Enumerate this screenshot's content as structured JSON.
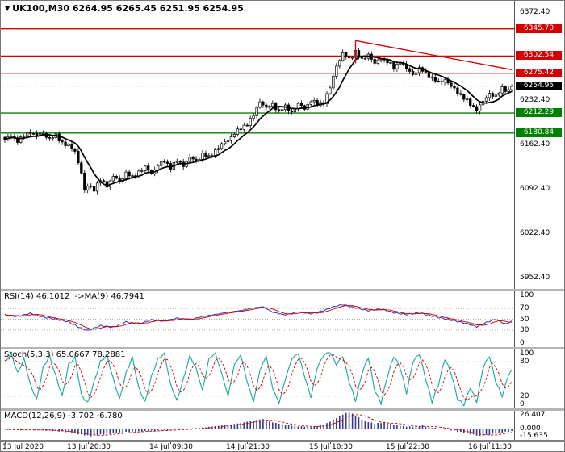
{
  "header": {
    "marker_icon": "▼",
    "symbol": "UK100,M30",
    "ohlc": "6264.95 6265.45 6251.95 6254.95"
  },
  "colors": {
    "bg": "#ffffff",
    "candle": "#000000",
    "ma": "#000000",
    "resistance": "#d40000",
    "support": "#008000",
    "badge_current": "#000000",
    "rsi_main": "#4a3ab4",
    "rsi_signal": "#c80000",
    "stoch_main": "#1aa79d",
    "stoch_signal": "#c80000",
    "macd_hist": "#38388a",
    "macd_signal": "#c80000",
    "grid": "#ababab",
    "axis_text": "#000000"
  },
  "chart_data": {
    "type": "candlestick",
    "symbol": "UK100",
    "timeframe": "M30",
    "last_ohlc": {
      "open": 6264.95,
      "high": 6265.45,
      "low": 6251.95,
      "close": 6254.95
    },
    "bars": 160,
    "price_axis": {
      "range": [
        5934,
        6390
      ],
      "ticks": [
        "6372.40",
        "6232.40",
        "6162.40",
        "6092.40",
        "6022.40",
        "5952.40"
      ]
    },
    "levels": [
      {
        "price": 6345.7,
        "label": "6345.70",
        "type": "resistance"
      },
      {
        "price": 6302.54,
        "label": "6302.54",
        "type": "resistance"
      },
      {
        "price": 6275.42,
        "label": "6275.42",
        "type": "resistance"
      },
      {
        "price": 6212.29,
        "label": "6212.29",
        "type": "support"
      },
      {
        "price": 6180.84,
        "label": "6180.84",
        "type": "support"
      }
    ],
    "current_price": 6254.95,
    "current_price_label": "6254.95",
    "trendline": {
      "from": [
        110,
        6327
      ],
      "to": [
        159,
        6281
      ],
      "edge_from": [
        110,
        6327
      ],
      "edge_to": [
        110,
        6291
      ]
    },
    "close_path": [
      [
        0,
        6170
      ],
      [
        2,
        6176
      ],
      [
        4,
        6169
      ],
      [
        6,
        6175
      ],
      [
        8,
        6183
      ],
      [
        10,
        6176
      ],
      [
        12,
        6180
      ],
      [
        14,
        6172
      ],
      [
        16,
        6176
      ],
      [
        18,
        6166
      ],
      [
        20,
        6160
      ],
      [
        22,
        6152
      ],
      [
        24,
        6118
      ],
      [
        25,
        6088
      ],
      [
        26,
        6098
      ],
      [
        28,
        6092
      ],
      [
        30,
        6106
      ],
      [
        32,
        6098
      ],
      [
        34,
        6112
      ],
      [
        36,
        6104
      ],
      [
        38,
        6118
      ],
      [
        40,
        6110
      ],
      [
        42,
        6120
      ],
      [
        44,
        6126
      ],
      [
        46,
        6117
      ],
      [
        48,
        6130
      ],
      [
        50,
        6136
      ],
      [
        52,
        6127
      ],
      [
        54,
        6136
      ],
      [
        56,
        6130
      ],
      [
        58,
        6142
      ],
      [
        60,
        6136
      ],
      [
        62,
        6148
      ],
      [
        64,
        6142
      ],
      [
        66,
        6154
      ],
      [
        68,
        6162
      ],
      [
        70,
        6170
      ],
      [
        72,
        6180
      ],
      [
        74,
        6188
      ],
      [
        76,
        6196
      ],
      [
        78,
        6208
      ],
      [
        80,
        6232
      ],
      [
        82,
        6220
      ],
      [
        84,
        6226
      ],
      [
        86,
        6216
      ],
      [
        88,
        6222
      ],
      [
        90,
        6214
      ],
      [
        92,
        6226
      ],
      [
        94,
        6220
      ],
      [
        96,
        6232
      ],
      [
        98,
        6226
      ],
      [
        100,
        6230
      ],
      [
        102,
        6252
      ],
      [
        104,
        6288
      ],
      [
        106,
        6306
      ],
      [
        108,
        6298
      ],
      [
        110,
        6310
      ],
      [
        112,
        6296
      ],
      [
        114,
        6306
      ],
      [
        116,
        6290
      ],
      [
        118,
        6300
      ],
      [
        120,
        6294
      ],
      [
        122,
        6284
      ],
      [
        124,
        6294
      ],
      [
        126,
        6282
      ],
      [
        128,
        6274
      ],
      [
        130,
        6282
      ],
      [
        132,
        6276
      ],
      [
        134,
        6268
      ],
      [
        136,
        6260
      ],
      [
        138,
        6266
      ],
      [
        140,
        6254
      ],
      [
        142,
        6246
      ],
      [
        144,
        6236
      ],
      [
        146,
        6226
      ],
      [
        148,
        6218
      ],
      [
        150,
        6230
      ],
      [
        152,
        6244
      ],
      [
        154,
        6238
      ],
      [
        156,
        6252
      ],
      [
        158,
        6248
      ],
      [
        159,
        6255
      ]
    ],
    "time_labels": [
      {
        "bar": 0,
        "text": "13 Jul 2020"
      },
      {
        "bar": 26,
        "text": "13 Jul 20:30"
      },
      {
        "bar": 52,
        "text": "14 Jul 09:30"
      },
      {
        "bar": 76,
        "text": "14 Jul 21:30"
      },
      {
        "bar": 102,
        "text": "15 Jul 10:30"
      },
      {
        "bar": 126,
        "text": "15 Jul 22:30"
      },
      {
        "bar": 152,
        "text": "16 Jul 11:30"
      }
    ],
    "rsi": {
      "label": "RSI(14) 46.1012  ->MA(9) 46.7941",
      "values": {
        "rsi": 46.1012,
        "ma": 46.7941
      },
      "range": [
        0,
        100
      ],
      "ticks": [
        "100",
        "70",
        "50",
        "30",
        "0"
      ],
      "grid": [
        70,
        50,
        30
      ],
      "path": [
        [
          0,
          58
        ],
        [
          4,
          55
        ],
        [
          8,
          61
        ],
        [
          12,
          54
        ],
        [
          16,
          50
        ],
        [
          20,
          45
        ],
        [
          24,
          33
        ],
        [
          26,
          29
        ],
        [
          30,
          38
        ],
        [
          34,
          35
        ],
        [
          38,
          45
        ],
        [
          42,
          41
        ],
        [
          46,
          49
        ],
        [
          50,
          46
        ],
        [
          54,
          52
        ],
        [
          58,
          49
        ],
        [
          62,
          55
        ],
        [
          66,
          59
        ],
        [
          70,
          63
        ],
        [
          74,
          66
        ],
        [
          78,
          71
        ],
        [
          81,
          73
        ],
        [
          84,
          63
        ],
        [
          88,
          58
        ],
        [
          92,
          64
        ],
        [
          96,
          60
        ],
        [
          100,
          66
        ],
        [
          103,
          73
        ],
        [
          106,
          77
        ],
        [
          110,
          71
        ],
        [
          114,
          66
        ],
        [
          118,
          69
        ],
        [
          122,
          62
        ],
        [
          126,
          59
        ],
        [
          130,
          62
        ],
        [
          134,
          56
        ],
        [
          138,
          51
        ],
        [
          142,
          46
        ],
        [
          146,
          40
        ],
        [
          148,
          36
        ],
        [
          151,
          44
        ],
        [
          154,
          50
        ],
        [
          157,
          41
        ],
        [
          159,
          46
        ]
      ]
    },
    "stoch": {
      "label": "Stoch(5,3,3) 65.0667 78.2881",
      "values": {
        "k": 65.0667,
        "d": 78.2881
      },
      "range": [
        0,
        100
      ],
      "ticks": [
        "100",
        "80",
        "20",
        "0"
      ],
      "grid": [
        80,
        20
      ],
      "path": [
        [
          0,
          80
        ],
        [
          2,
          94
        ],
        [
          4,
          60
        ],
        [
          6,
          85
        ],
        [
          8,
          40
        ],
        [
          10,
          14
        ],
        [
          12,
          70
        ],
        [
          14,
          90
        ],
        [
          16,
          55
        ],
        [
          18,
          20
        ],
        [
          20,
          75
        ],
        [
          22,
          88
        ],
        [
          24,
          22
        ],
        [
          26,
          8
        ],
        [
          28,
          45
        ],
        [
          30,
          80
        ],
        [
          32,
          92
        ],
        [
          34,
          50
        ],
        [
          36,
          15
        ],
        [
          38,
          60
        ],
        [
          40,
          88
        ],
        [
          42,
          34
        ],
        [
          44,
          10
        ],
        [
          46,
          55
        ],
        [
          48,
          85
        ],
        [
          50,
          94
        ],
        [
          52,
          40
        ],
        [
          54,
          12
        ],
        [
          56,
          50
        ],
        [
          58,
          90
        ],
        [
          60,
          68
        ],
        [
          62,
          30
        ],
        [
          64,
          85
        ],
        [
          66,
          95
        ],
        [
          68,
          60
        ],
        [
          70,
          20
        ],
        [
          72,
          75
        ],
        [
          74,
          92
        ],
        [
          76,
          45
        ],
        [
          78,
          10
        ],
        [
          80,
          65
        ],
        [
          82,
          90
        ],
        [
          84,
          34
        ],
        [
          86,
          8
        ],
        [
          88,
          50
        ],
        [
          90,
          85
        ],
        [
          92,
          95
        ],
        [
          94,
          55
        ],
        [
          96,
          18
        ],
        [
          98,
          70
        ],
        [
          100,
          92
        ],
        [
          102,
          97
        ],
        [
          104,
          75
        ],
        [
          106,
          90
        ],
        [
          108,
          45
        ],
        [
          110,
          12
        ],
        [
          112,
          60
        ],
        [
          114,
          88
        ],
        [
          116,
          30
        ],
        [
          118,
          8
        ],
        [
          120,
          55
        ],
        [
          122,
          90
        ],
        [
          124,
          70
        ],
        [
          126,
          25
        ],
        [
          128,
          80
        ],
        [
          130,
          94
        ],
        [
          132,
          50
        ],
        [
          134,
          10
        ],
        [
          136,
          40
        ],
        [
          138,
          85
        ],
        [
          140,
          60
        ],
        [
          142,
          15
        ],
        [
          144,
          5
        ],
        [
          146,
          35
        ],
        [
          148,
          10
        ],
        [
          150,
          70
        ],
        [
          152,
          90
        ],
        [
          154,
          45
        ],
        [
          156,
          20
        ],
        [
          158,
          58
        ],
        [
          159,
          65
        ]
      ]
    },
    "macd": {
      "label": "MACD(12,26,9) -3.702 -6.780",
      "values": {
        "macd": -3.702,
        "signal": -6.78
      },
      "range": [
        -15.635,
        26.407
      ],
      "ticks": [
        "26.407",
        "0.000",
        "-15.635"
      ],
      "grid": [
        0
      ],
      "path": [
        [
          0,
          -1
        ],
        [
          5,
          -2
        ],
        [
          10,
          -1.5
        ],
        [
          15,
          -3
        ],
        [
          20,
          -5
        ],
        [
          24,
          -9
        ],
        [
          27,
          -11
        ],
        [
          30,
          -9
        ],
        [
          34,
          -7
        ],
        [
          38,
          -5
        ],
        [
          42,
          -4
        ],
        [
          46,
          -3
        ],
        [
          50,
          -2
        ],
        [
          54,
          -1
        ],
        [
          58,
          0
        ],
        [
          62,
          2
        ],
        [
          66,
          4
        ],
        [
          70,
          6
        ],
        [
          74,
          9
        ],
        [
          78,
          13
        ],
        [
          81,
          15
        ],
        [
          84,
          10
        ],
        [
          88,
          6
        ],
        [
          92,
          4
        ],
        [
          96,
          3
        ],
        [
          100,
          6
        ],
        [
          103,
          14
        ],
        [
          106,
          22
        ],
        [
          108,
          26
        ],
        [
          110,
          20
        ],
        [
          113,
          12
        ],
        [
          116,
          8
        ],
        [
          119,
          10
        ],
        [
          122,
          7
        ],
        [
          125,
          4
        ],
        [
          128,
          3
        ],
        [
          131,
          5
        ],
        [
          134,
          2
        ],
        [
          137,
          0
        ],
        [
          140,
          -2
        ],
        [
          143,
          -5
        ],
        [
          146,
          -8
        ],
        [
          149,
          -11
        ],
        [
          152,
          -9
        ],
        [
          155,
          -6
        ],
        [
          158,
          -4
        ],
        [
          159,
          -3.7
        ]
      ]
    }
  }
}
